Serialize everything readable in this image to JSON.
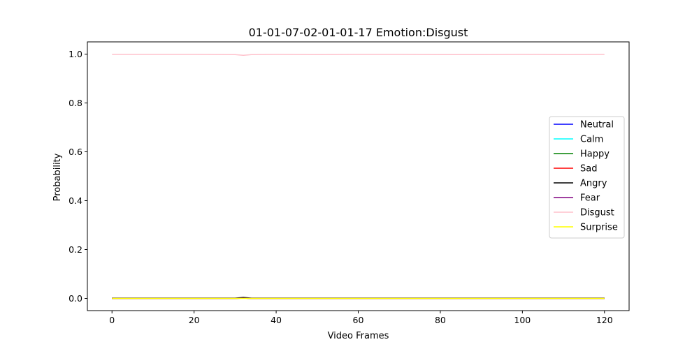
{
  "chart_data": {
    "type": "line",
    "title": "01-01-07-02-01-01-17 Emotion:Disgust",
    "xlabel": "Video Frames",
    "ylabel": "Probability",
    "xlim": [
      -6,
      126
    ],
    "ylim": [
      -0.05,
      1.05
    ],
    "xticks": [
      0,
      20,
      40,
      60,
      80,
      100,
      120
    ],
    "yticks": [
      0.0,
      0.2,
      0.4,
      0.6,
      0.8,
      1.0
    ],
    "xtick_labels": [
      "0",
      "20",
      "40",
      "60",
      "80",
      "100",
      "120"
    ],
    "ytick_labels": [
      "0.0",
      "0.2",
      "0.4",
      "0.6",
      "0.8",
      "1.0"
    ],
    "legend_position": "center-right",
    "series": [
      {
        "name": "Neutral",
        "color": "#0000ff",
        "x": [
          0,
          30,
          32,
          34,
          60,
          90,
          120
        ],
        "y": [
          0.0,
          0.0,
          0.001,
          0.0,
          0.0,
          0.0,
          0.0
        ]
      },
      {
        "name": "Calm",
        "color": "#00ffff",
        "x": [
          0,
          30,
          32,
          34,
          60,
          90,
          120
        ],
        "y": [
          0.0,
          0.0,
          0.001,
          0.0,
          0.0,
          0.0,
          0.0
        ]
      },
      {
        "name": "Happy",
        "color": "#008000",
        "x": [
          0,
          30,
          32,
          34,
          60,
          90,
          120
        ],
        "y": [
          0.0,
          0.0,
          0.001,
          0.0,
          0.0,
          0.0,
          0.0
        ]
      },
      {
        "name": "Sad",
        "color": "#ff0000",
        "x": [
          0,
          30,
          32,
          34,
          60,
          90,
          120
        ],
        "y": [
          0.0,
          0.0,
          0.001,
          0.0,
          0.0,
          0.0,
          0.0
        ]
      },
      {
        "name": "Angry",
        "color": "#000000",
        "x": [
          0,
          30,
          32,
          34,
          60,
          90,
          120
        ],
        "y": [
          0.001,
          0.001,
          0.004,
          0.001,
          0.001,
          0.001,
          0.001
        ]
      },
      {
        "name": "Fear",
        "color": "#800080",
        "x": [
          0,
          30,
          32,
          34,
          60,
          90,
          120
        ],
        "y": [
          0.0,
          0.0,
          0.001,
          0.0,
          0.0,
          0.0,
          0.0
        ]
      },
      {
        "name": "Disgust",
        "color": "#ffc0cb",
        "x": [
          0,
          10,
          20,
          30,
          32,
          34,
          40,
          50,
          60,
          70,
          80,
          90,
          100,
          110,
          120
        ],
        "y": [
          0.999,
          0.999,
          0.999,
          0.998,
          0.995,
          0.998,
          0.999,
          0.998,
          0.999,
          0.999,
          0.998,
          0.998,
          0.999,
          0.998,
          0.999
        ]
      },
      {
        "name": "Surprise",
        "color": "#ffff00",
        "x": [
          0,
          30,
          32,
          34,
          60,
          90,
          120
        ],
        "y": [
          0.0,
          0.0,
          0.0,
          0.0,
          0.0,
          0.0,
          0.0
        ]
      }
    ]
  }
}
